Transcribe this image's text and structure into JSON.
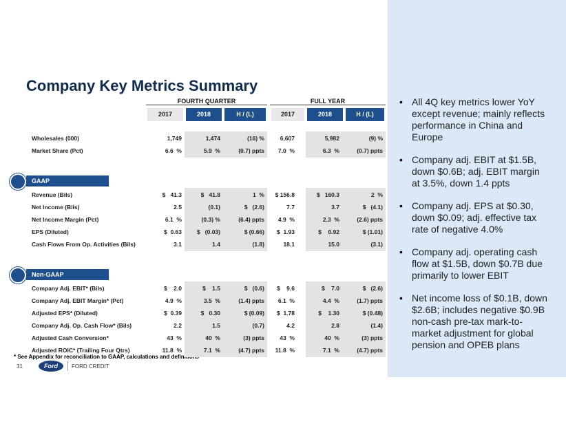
{
  "title": "Company Key Metrics Summary",
  "table": {
    "groups": [
      "FOURTH QUARTER",
      "FULL YEAR"
    ],
    "columns": [
      "2017",
      "2018",
      "H / (L)",
      "2017",
      "2018",
      "H / (L)"
    ],
    "sections": [
      {
        "badge": null,
        "rows": [
          [
            "Wholesales (000)",
            "1,749",
            "1,474",
            "(16) %",
            "6,607",
            "5,982",
            "(9) %"
          ],
          [
            "Market Share (Pct)",
            "6.6  %",
            "5.9  %",
            "(0.7) ppts",
            "7.0  %",
            "6.3  %",
            "(0.7) ppts"
          ]
        ]
      },
      {
        "badge": "GAAP",
        "rows": [
          [
            "Revenue (Bils)",
            "$   41.3",
            "$   41.8",
            "1  %",
            "$ 156.8",
            "$   160.3",
            "2  %"
          ],
          [
            "Net Income (Bils)",
            "2.5",
            "(0.1)",
            "$   (2.6)",
            "7.7",
            "3.7",
            "$   (4.1)"
          ],
          [
            "Net Income Margin (Pct)",
            "6.1  %",
            "(0.3) %",
            "(6.4) ppts",
            "4.9  %",
            "2.3  %",
            "(2.6) ppts"
          ],
          [
            "EPS (Diluted)",
            "$  0.63",
            "$   (0.03)",
            "$ (0.66)",
            "$  1.93",
            "$    0.92",
            "$ (1.01)"
          ],
          [
            "Cash Flows From Op. Activities (Bils)",
            "3.1",
            "1.4",
            "(1.8)",
            "18.1",
            "15.0",
            "(3.1)"
          ]
        ]
      },
      {
        "badge": "Non-GAAP",
        "rows": [
          [
            "Company Adj. EBIT* (Bils)",
            "$    2.0",
            "$    1.5",
            "$   (0.6)",
            "$    9.6",
            "$    7.0",
            "$   (2.6)"
          ],
          [
            "Company Adj. EBIT Margin* (Pct)",
            "4.9  %",
            "3.5  %",
            "(1.4) ppts",
            "6.1  %",
            "4.4  %",
            "(1.7) ppts"
          ],
          [
            "Adjusted EPS* (Diluted)",
            "$  0.39",
            "$   0.30",
            "$ (0.09)",
            "$  1.78",
            "$    1.30",
            "$ (0.48)"
          ],
          [
            "Company Adj. Op. Cash Flow* (Bils)",
            "2.2",
            "1.5",
            "(0.7)",
            "4.2",
            "2.8",
            "(1.4)"
          ],
          [
            "Adjusted Cash Conversion*",
            "43  %",
            "40  %",
            "(3) ppts",
            "43  %",
            "40  %",
            "(3) ppts"
          ],
          [
            "Adjusted ROIC* (Trailing Four Qtrs)",
            "11.8  %",
            "7.1  %",
            "(4.7) ppts",
            "11.8  %",
            "7.1  %",
            "(4.7) ppts"
          ]
        ]
      }
    ]
  },
  "footnote": "* See Appendix for reconciliation to GAAP, calculations and definitions",
  "footer": {
    "page": "31",
    "logo": "Ford",
    "brand": "FORD CREDIT"
  },
  "bullets": [
    "All 4Q key metrics lower YoY except revenue; mainly reflects performance in China and Europe",
    "Company adj. EBIT at $1.5B, down $0.6B; adj. EBIT margin at 3.5%, down 1.4 ppts",
    "Company adj. EPS at $0.30, down $0.09; adj. effective tax rate of negative 4.0%",
    "Company adj. operating cash flow at $1.5B, down $0.7B due primarily to lower EBIT",
    "Net income loss of $0.1B, down $2.6B; includes negative $0.9B non-cash pre-tax mark-to-market adjustment for global pension and OPEB plans"
  ]
}
